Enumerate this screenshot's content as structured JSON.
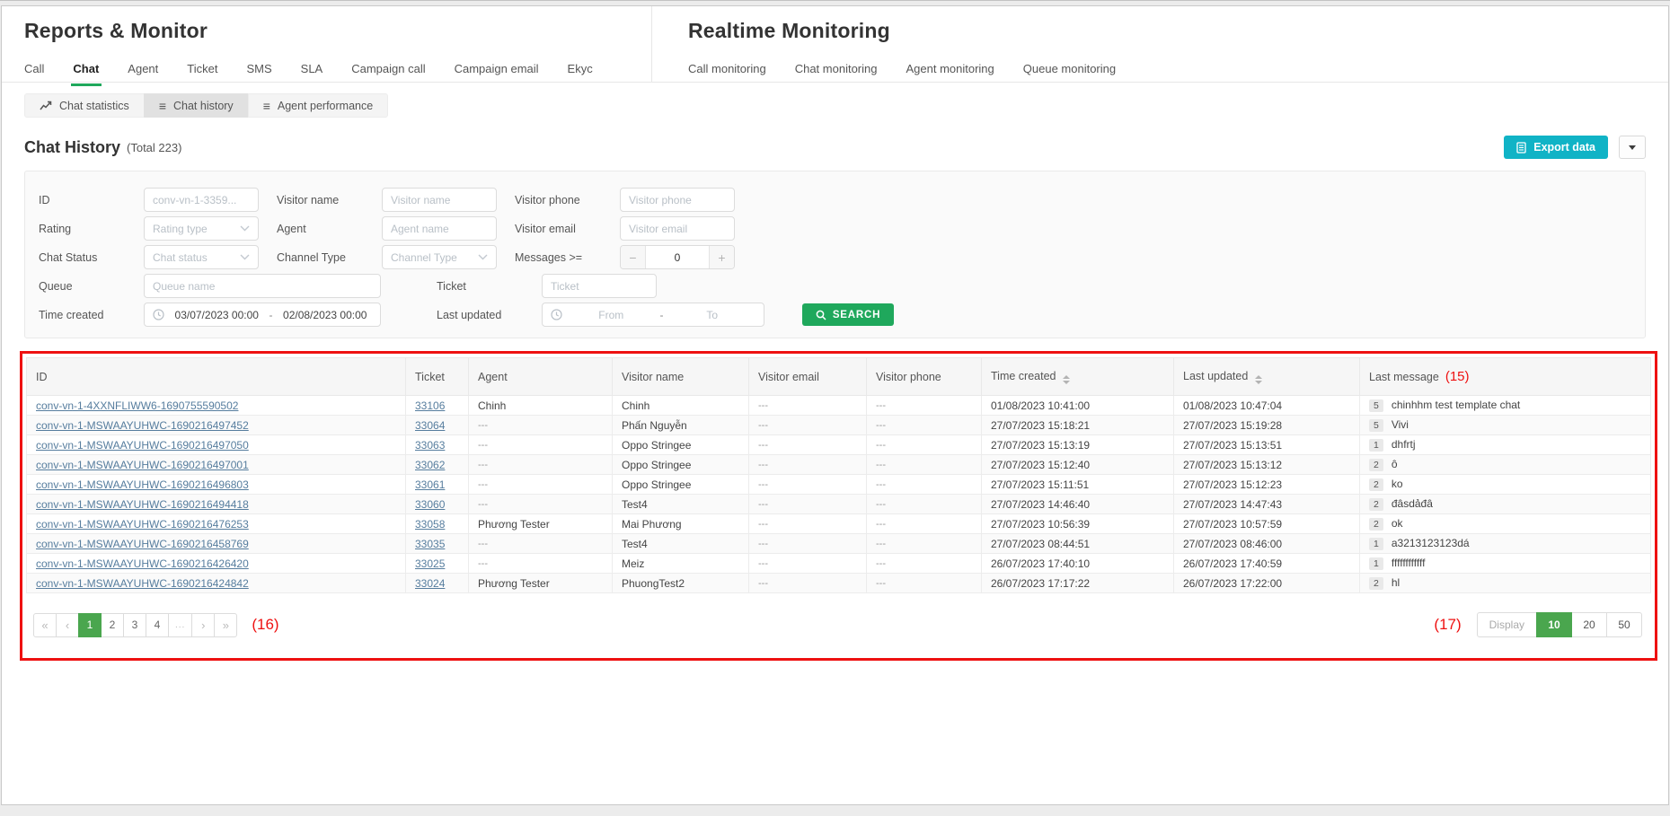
{
  "header": {
    "left": {
      "title": "Reports & Monitor",
      "tabs": [
        {
          "label": "Call"
        },
        {
          "label": "Chat",
          "active": true
        },
        {
          "label": "Agent"
        },
        {
          "label": "Ticket"
        },
        {
          "label": "SMS"
        },
        {
          "label": "SLA"
        },
        {
          "label": "Campaign call"
        },
        {
          "label": "Campaign email"
        },
        {
          "label": "Ekyc"
        }
      ]
    },
    "right": {
      "title": "Realtime Monitoring",
      "tabs": [
        {
          "label": "Call monitoring"
        },
        {
          "label": "Chat monitoring"
        },
        {
          "label": "Agent monitoring"
        },
        {
          "label": "Queue monitoring"
        }
      ]
    }
  },
  "subtabs": [
    {
      "label": "Chat statistics",
      "icon": "trend-icon",
      "active": false
    },
    {
      "label": "Chat history",
      "icon": "list-icon",
      "active": true
    },
    {
      "label": "Agent performance",
      "icon": "list-icon",
      "active": false
    }
  ],
  "page": {
    "title": "Chat History",
    "total": "(Total 223)"
  },
  "toolbar": {
    "export_label": "Export data"
  },
  "filters": {
    "id": {
      "label": "ID",
      "placeholder": "conv-vn-1-3359..."
    },
    "visitor_name": {
      "label": "Visitor name",
      "placeholder": "Visitor name"
    },
    "visitor_phone": {
      "label": "Visitor phone",
      "placeholder": "Visitor phone"
    },
    "rating": {
      "label": "Rating",
      "placeholder": "Rating type"
    },
    "agent": {
      "label": "Agent",
      "placeholder": "Agent name"
    },
    "visitor_email": {
      "label": "Visitor email",
      "placeholder": "Visitor email"
    },
    "chat_status": {
      "label": "Chat Status",
      "placeholder": "Chat status"
    },
    "channel_type": {
      "label": "Channel Type",
      "placeholder": "Channel Type"
    },
    "messages": {
      "label": "Messages >=",
      "minus": "−",
      "value": "0",
      "plus": "+"
    },
    "queue": {
      "label": "Queue",
      "placeholder": "Queue name"
    },
    "ticket": {
      "label": "Ticket",
      "placeholder": "Ticket"
    },
    "time_created": {
      "label": "Time created",
      "from": "03/07/2023 00:00",
      "separator": "-",
      "to": "02/08/2023 00:00"
    },
    "last_updated": {
      "label": "Last updated",
      "from": "From",
      "separator": "-",
      "to": "To"
    },
    "search_label": "SEARCH"
  },
  "table": {
    "columns": [
      {
        "label": "ID"
      },
      {
        "label": "Ticket"
      },
      {
        "label": "Agent"
      },
      {
        "label": "Visitor name"
      },
      {
        "label": "Visitor email"
      },
      {
        "label": "Visitor phone"
      },
      {
        "label": "Time created",
        "sortable": true
      },
      {
        "label": "Last updated",
        "sortable": true
      },
      {
        "label": "Last message",
        "annotation": "(15)"
      }
    ],
    "rows": [
      {
        "id": "conv-vn-1-4XXNFLIWW6-1690755590502",
        "ticket": "33106",
        "agent": "Chinh",
        "visitor_name": "Chinh",
        "visitor_email": "---",
        "visitor_phone": "---",
        "time_created": "01/08/2023 10:41:00",
        "last_updated": "01/08/2023 10:47:04",
        "msg_count": "5",
        "last_message": "chinhhm test template chat"
      },
      {
        "id": "conv-vn-1-MSWAAYUHWC-1690216497452",
        "ticket": "33064",
        "agent": "---",
        "visitor_name": "Phấn Nguyễn",
        "visitor_email": "---",
        "visitor_phone": "---",
        "time_created": "27/07/2023 15:18:21",
        "last_updated": "27/07/2023 15:19:28",
        "msg_count": "5",
        "last_message": "Vivi"
      },
      {
        "id": "conv-vn-1-MSWAAYUHWC-1690216497050",
        "ticket": "33063",
        "agent": "---",
        "visitor_name": "Oppo Stringee",
        "visitor_email": "---",
        "visitor_phone": "---",
        "time_created": "27/07/2023 15:13:19",
        "last_updated": "27/07/2023 15:13:51",
        "msg_count": "1",
        "last_message": "dhfrtj"
      },
      {
        "id": "conv-vn-1-MSWAAYUHWC-1690216497001",
        "ticket": "33062",
        "agent": "---",
        "visitor_name": "Oppo Stringee",
        "visitor_email": "---",
        "visitor_phone": "---",
        "time_created": "27/07/2023 15:12:40",
        "last_updated": "27/07/2023 15:13:12",
        "msg_count": "2",
        "last_message": "ô"
      },
      {
        "id": "conv-vn-1-MSWAAYUHWC-1690216496803",
        "ticket": "33061",
        "agent": "---",
        "visitor_name": "Oppo Stringee",
        "visitor_email": "---",
        "visitor_phone": "---",
        "time_created": "27/07/2023 15:11:51",
        "last_updated": "27/07/2023 15:12:23",
        "msg_count": "2",
        "last_message": "ko"
      },
      {
        "id": "conv-vn-1-MSWAAYUHWC-1690216494418",
        "ticket": "33060",
        "agent": "---",
        "visitor_name": "Test4",
        "visitor_email": "---",
        "visitor_phone": "---",
        "time_created": "27/07/2023 14:46:40",
        "last_updated": "27/07/2023 14:47:43",
        "msg_count": "2",
        "last_message": "đâsdảđâ"
      },
      {
        "id": "conv-vn-1-MSWAAYUHWC-1690216476253",
        "ticket": "33058",
        "agent": "Phương Tester",
        "visitor_name": "Mai Phương",
        "visitor_email": "---",
        "visitor_phone": "---",
        "time_created": "27/07/2023 10:56:39",
        "last_updated": "27/07/2023 10:57:59",
        "msg_count": "2",
        "last_message": "ok"
      },
      {
        "id": "conv-vn-1-MSWAAYUHWC-1690216458769",
        "ticket": "33035",
        "agent": "---",
        "visitor_name": "Test4",
        "visitor_email": "---",
        "visitor_phone": "---",
        "time_created": "27/07/2023 08:44:51",
        "last_updated": "27/07/2023 08:46:00",
        "msg_count": "1",
        "last_message": "a3213123123dá"
      },
      {
        "id": "conv-vn-1-MSWAAYUHWC-1690216426420",
        "ticket": "33025",
        "agent": "---",
        "visitor_name": "Meiz",
        "visitor_email": "---",
        "visitor_phone": "---",
        "time_created": "26/07/2023 17:40:10",
        "last_updated": "26/07/2023 17:40:59",
        "msg_count": "1",
        "last_message": "ffffffffffff"
      },
      {
        "id": "conv-vn-1-MSWAAYUHWC-1690216424842",
        "ticket": "33024",
        "agent": "Phương Tester",
        "visitor_name": "PhuongTest2",
        "visitor_email": "---",
        "visitor_phone": "---",
        "time_created": "26/07/2023 17:17:22",
        "last_updated": "26/07/2023 17:22:00",
        "msg_count": "2",
        "last_message": "hl"
      }
    ]
  },
  "pagination": {
    "annotation": "(16)",
    "items": [
      {
        "label": "«",
        "type": "first"
      },
      {
        "label": "‹",
        "type": "prev"
      },
      {
        "label": "1",
        "type": "page",
        "active": true
      },
      {
        "label": "2",
        "type": "page"
      },
      {
        "label": "3",
        "type": "page"
      },
      {
        "label": "4",
        "type": "page"
      },
      {
        "label": "...",
        "type": "ellipsis"
      },
      {
        "label": "›",
        "type": "next"
      },
      {
        "label": "»",
        "type": "last"
      }
    ]
  },
  "display": {
    "annotation": "(17)",
    "label": "Display",
    "options": [
      {
        "label": "10",
        "active": true
      },
      {
        "label": "20"
      },
      {
        "label": "50"
      }
    ]
  },
  "colors": {
    "accent_green": "#1fa85c",
    "pagination_green": "#4aa64e",
    "export_cyan": "#10b3c6",
    "link_blue": "#567d9e",
    "annotation_red": "#ee1111"
  }
}
